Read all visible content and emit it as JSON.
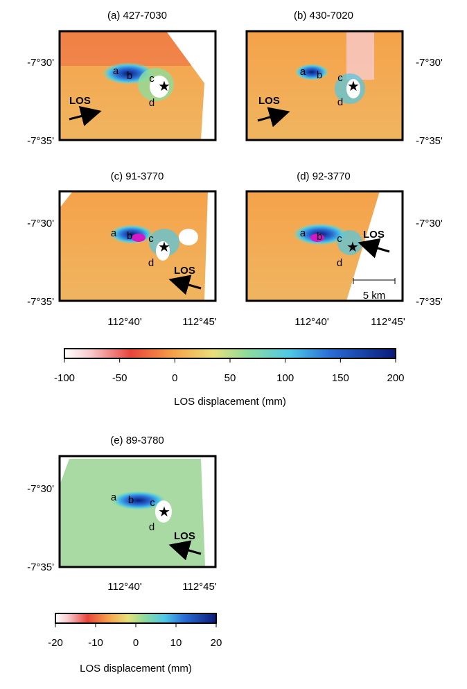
{
  "panels": [
    {
      "id": "a",
      "title": "(a) 427-7030",
      "los_label": "LOS",
      "los_direction": "east-northeast"
    },
    {
      "id": "b",
      "title": "(b) 430-7020",
      "los_label": "LOS",
      "los_direction": "east-northeast"
    },
    {
      "id": "c",
      "title": "(c) 91-3770",
      "los_label": "LOS",
      "los_direction": "west-northwest"
    },
    {
      "id": "d",
      "title": "(d) 92-3770",
      "los_label": "LOS",
      "los_direction": "west-northwest",
      "scale_bar": "5 km"
    },
    {
      "id": "e",
      "title": "(e) 89-3780",
      "los_label": "LOS",
      "los_direction": "west-northwest"
    }
  ],
  "site_labels": [
    "a",
    "b",
    "c",
    "d"
  ],
  "lat_ticks": [
    "-7°30'",
    "-7°35'"
  ],
  "lon_ticks": [
    "112°40'",
    "112°45'"
  ],
  "colorbars": [
    {
      "ticks": [
        "-100",
        "-50",
        "0",
        "50",
        "100",
        "150",
        "200"
      ],
      "label": "LOS displacement (mm)",
      "range": [
        -100,
        200
      ]
    },
    {
      "ticks": [
        "-20",
        "-10",
        "0",
        "10",
        "20"
      ],
      "label": "LOS displacement (mm)",
      "range": [
        -20,
        20
      ]
    }
  ],
  "colors": {
    "low": "#ffffff",
    "red": "#e8453c",
    "orange": "#f5a24a",
    "yellow": "#e9e07a",
    "green": "#8fdc9a",
    "cyan": "#4fc8e6",
    "blue": "#2a6fd6",
    "navy": "#0a1a78"
  }
}
